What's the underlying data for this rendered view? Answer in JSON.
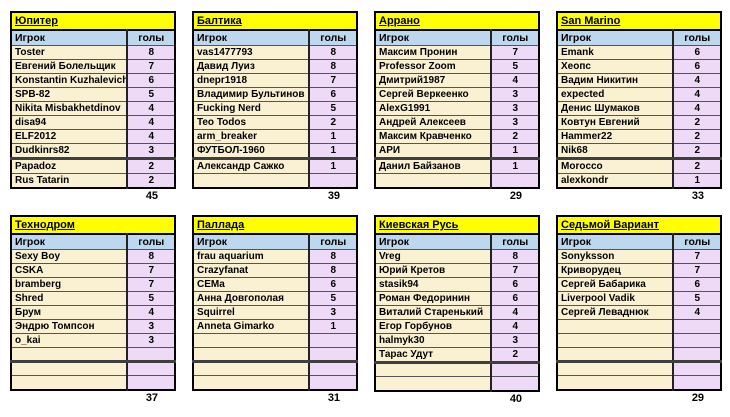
{
  "columns": {
    "player": "Игрок",
    "goals": "голы"
  },
  "colors": {
    "title_bg": "#FFFF00",
    "header_bg": "#BDD7EE",
    "player_bg": "#FAF0D2",
    "goals_bg": "#EED9F6"
  },
  "chart_data": {
    "type": "table",
    "note": "Eight team goal-scorer tables, columns: Игрок / голы"
  },
  "teams": [
    {
      "name": "Юпитер",
      "total": "45",
      "rows": [
        [
          "Toster",
          "8"
        ],
        [
          "Евгений Болельщик",
          "7"
        ],
        [
          "Konstantin Kuzhalevich",
          "6"
        ],
        [
          "SPB-82",
          "5"
        ],
        [
          "Nikita Misbakhetdinov",
          "4"
        ],
        [
          "disa94",
          "4"
        ],
        [
          "ELF2012",
          "4"
        ],
        [
          "Dudkinrs82",
          "3"
        ],
        [
          "Papadoz",
          "2"
        ],
        [
          "Rus Tatarin",
          "2"
        ]
      ]
    },
    {
      "name": "Балтика",
      "total": "39",
      "rows": [
        [
          "vas1477793",
          "8"
        ],
        [
          "Давид Луиз",
          "8"
        ],
        [
          "dnepr1918",
          "7"
        ],
        [
          "Владимир Бультинов",
          "6"
        ],
        [
          "Fucking Nerd",
          "5"
        ],
        [
          "Teo Todos",
          "2"
        ],
        [
          "arm_breaker",
          "1"
        ],
        [
          "ФУТБОЛ-1960",
          "1"
        ],
        [
          "Александр Сажко",
          "1"
        ],
        [
          "",
          ""
        ]
      ]
    },
    {
      "name": "Аррано",
      "total": "29",
      "rows": [
        [
          "Максим Пронин",
          "7"
        ],
        [
          "Professor Zoom",
          "5"
        ],
        [
          "Дмитрий1987",
          "4"
        ],
        [
          "Сергей Веркеенко",
          "3"
        ],
        [
          "AlexG1991",
          "3"
        ],
        [
          "Андрей Алексеев",
          "3"
        ],
        [
          "Максим Кравченко",
          "2"
        ],
        [
          "АРИ",
          "1"
        ],
        [
          "Данил Байзанов",
          "1"
        ],
        [
          "",
          ""
        ]
      ]
    },
    {
      "name": "San Marino",
      "total": "33",
      "rows": [
        [
          "Emank",
          "6"
        ],
        [
          "Хеопс",
          "6"
        ],
        [
          "Вадим Никитин",
          "4"
        ],
        [
          "expected",
          "4"
        ],
        [
          "Денис Шумаков",
          "4"
        ],
        [
          "Ковтун Евгений",
          "2"
        ],
        [
          "Hammer22",
          "2"
        ],
        [
          "Nik68",
          "2"
        ],
        [
          "Morocco",
          "2"
        ],
        [
          "alexkondr",
          "1"
        ]
      ]
    },
    {
      "name": "Технодром",
      "total": "37",
      "rows": [
        [
          "Sexy Boy",
          "8"
        ],
        [
          "CSKA",
          "7"
        ],
        [
          "bramberg",
          "7"
        ],
        [
          "Shred",
          "5"
        ],
        [
          "Брум",
          "4"
        ],
        [
          "Эндрю Томпсон",
          "3"
        ],
        [
          "o_kai",
          "3"
        ],
        [
          "",
          ""
        ],
        [
          "",
          ""
        ],
        [
          "",
          ""
        ]
      ]
    },
    {
      "name": "Паллада",
      "total": "31",
      "rows": [
        [
          "frau aquarium",
          "8"
        ],
        [
          "Crazyfanat",
          "8"
        ],
        [
          "CEMa",
          "6"
        ],
        [
          "Анна Довгополая",
          "5"
        ],
        [
          "Squirrel",
          "3"
        ],
        [
          "Anneta Gimarko",
          "1"
        ],
        [
          "",
          ""
        ],
        [
          "",
          ""
        ],
        [
          "",
          ""
        ],
        [
          "",
          ""
        ]
      ]
    },
    {
      "name": "Киевская Русь",
      "total": "40",
      "rows": [
        [
          "Vreg",
          "8"
        ],
        [
          "Юрий Кретов",
          "7"
        ],
        [
          "stasik94",
          "6"
        ],
        [
          "Роман Федоринин",
          "6"
        ],
        [
          "Виталий Старенький",
          "4"
        ],
        [
          "Егор Горбунов",
          "4"
        ],
        [
          "halmyk30",
          "3"
        ],
        [
          "Тарас Удут",
          "2"
        ],
        [
          "",
          ""
        ],
        [
          "",
          ""
        ]
      ]
    },
    {
      "name": "Седьмой Вариант",
      "total": "29",
      "rows": [
        [
          "Sonyksson",
          "7"
        ],
        [
          "Криворудец",
          "7"
        ],
        [
          "Сергей Бабарика",
          "6"
        ],
        [
          "Liverpool Vadik",
          "5"
        ],
        [
          "Сергей Леваднюк",
          "4"
        ],
        [
          "",
          ""
        ],
        [
          "",
          ""
        ],
        [
          "",
          ""
        ],
        [
          "",
          ""
        ],
        [
          "",
          ""
        ]
      ]
    }
  ]
}
